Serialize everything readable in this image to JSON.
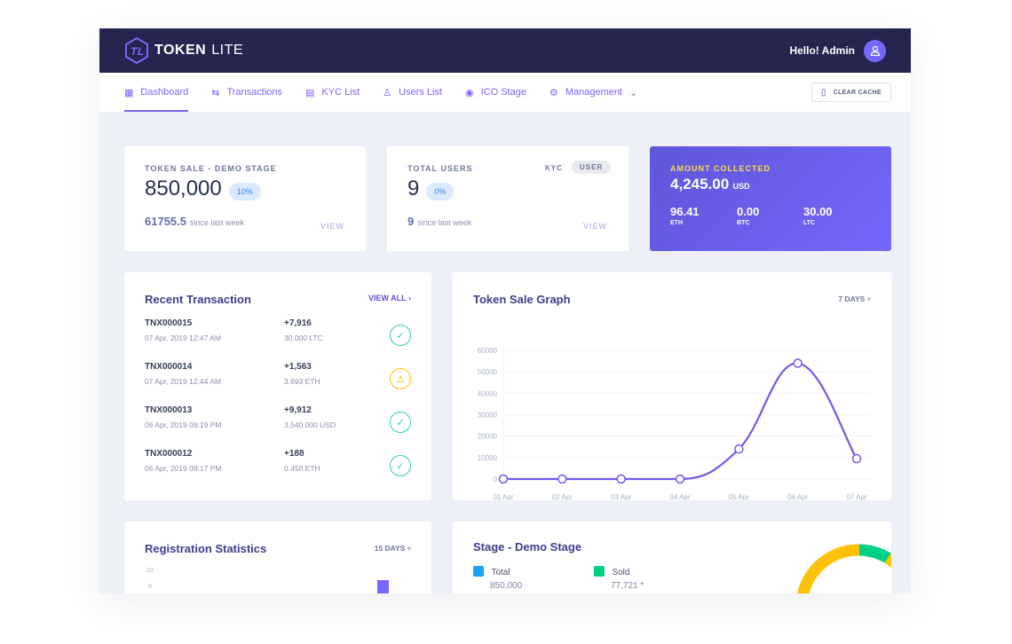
{
  "header": {
    "logo_bold": "TOKEN",
    "logo_light": "LITE",
    "greeting": "Hello! Admin"
  },
  "nav": {
    "items": [
      {
        "label": "Dashboard",
        "icon": "grid-icon"
      },
      {
        "label": "Transactions",
        "icon": "swap-icon"
      },
      {
        "label": "KYC List",
        "icon": "document-icon"
      },
      {
        "label": "Users List",
        "icon": "users-icon"
      },
      {
        "label": "ICO Stage",
        "icon": "coins-icon"
      },
      {
        "label": "Management",
        "icon": "gear-icon"
      }
    ],
    "clear_cache": "CLEAR CACHE"
  },
  "token_sale": {
    "label": "TOKEN SALE - DEMO STAGE",
    "value": "850,000",
    "badge": "10%",
    "week_value": "61755.5",
    "week_text": "since last week",
    "view": "VIEW"
  },
  "users": {
    "label": "TOTAL USERS",
    "tab_kyc": "KYC",
    "tab_user": "USER",
    "value": "9",
    "badge": "0%",
    "week_value": "9",
    "week_text": "since last week",
    "view": "VIEW"
  },
  "amount": {
    "label": "AMOUNT COLLECTED",
    "value": "4,245.00",
    "currency": "USD",
    "coins": [
      {
        "value": "96.41",
        "unit": "ETH"
      },
      {
        "value": "0.00",
        "unit": "BTC"
      },
      {
        "value": "30.00",
        "unit": "LTC"
      }
    ]
  },
  "recent": {
    "title": "Recent Transaction",
    "view_all": "VIEW ALL",
    "rows": [
      {
        "id": "TNX000015",
        "date": "07 Apr, 2019 12:47 AM",
        "amount": "+7,916",
        "sub": "30.000 LTC",
        "status": "success"
      },
      {
        "id": "TNX000014",
        "date": "07 Apr, 2019 12:44 AM",
        "amount": "+1,563",
        "sub": "3.693 ETH",
        "status": "warning"
      },
      {
        "id": "TNX000013",
        "date": "06 Apr, 2019 09:19 PM",
        "amount": "+9,912",
        "sub": "3,540.000 USD",
        "status": "success"
      },
      {
        "id": "TNX000012",
        "date": "06 Apr, 2019 09:17 PM",
        "amount": "+188",
        "sub": "0.450 ETH",
        "status": "success"
      }
    ]
  },
  "graph": {
    "title": "Token Sale Graph",
    "range": "7 DAYS"
  },
  "chart_data": {
    "type": "line",
    "categories": [
      "01 Apr",
      "02 Apr",
      "03 Apr",
      "04 Apr",
      "05 Apr",
      "06 Apr",
      "07 Apr"
    ],
    "values": [
      0,
      0,
      0,
      0,
      14000,
      54000,
      9500
    ],
    "ylim": [
      0,
      60000
    ],
    "yticks": [
      0,
      10000,
      20000,
      30000,
      40000,
      50000,
      60000
    ],
    "grid": true,
    "color": "#6c5ce7"
  },
  "registration": {
    "title": "Registration Statistics",
    "range": "15 DAYS",
    "yticks": [
      "10",
      "8"
    ]
  },
  "stage": {
    "title": "Stage - Demo Stage",
    "total_label": "Total",
    "total_value": "850,000",
    "sold_label": "Sold",
    "sold_value": "77,721 *",
    "colors": {
      "total": "#1da1f2",
      "sold": "#00d084",
      "remaining": "#ffc107"
    }
  }
}
